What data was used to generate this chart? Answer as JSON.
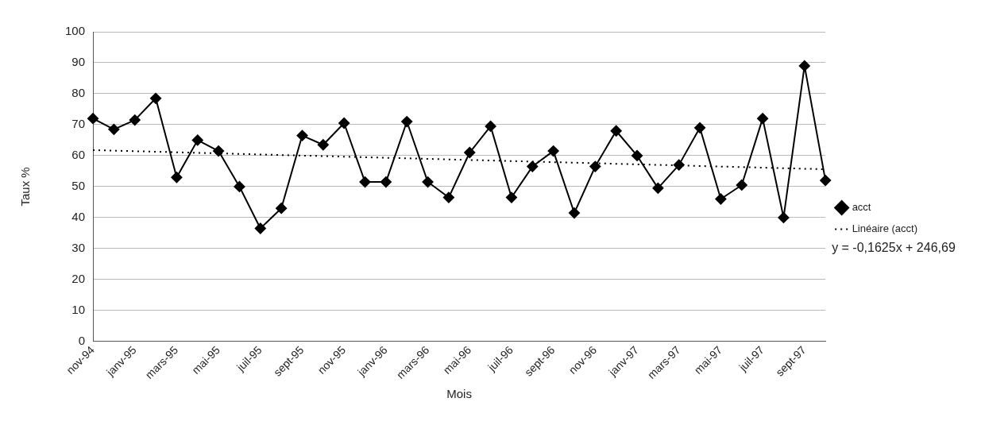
{
  "chart_data": {
    "type": "line",
    "xlabel": "Mois",
    "ylabel": "Taux %",
    "categories": [
      "nov-94",
      null,
      "janv-95",
      null,
      "mars-95",
      null,
      "mai-95",
      null,
      "juil-95",
      null,
      "sept-95",
      null,
      "nov-95",
      null,
      "janv-96",
      null,
      "mars-96",
      null,
      "mai-96",
      null,
      "juil-96",
      null,
      "sept-96",
      null,
      "nov-96",
      null,
      "janv-97",
      null,
      "mars-97",
      null,
      "mai-97",
      null,
      "juil-97",
      null,
      "sept-97",
      null
    ],
    "series": [
      {
        "name": "acct",
        "color": "#000000",
        "marker": "diamond",
        "line_style": "solid",
        "values": [
          72,
          68.5,
          71.5,
          78.5,
          53,
          65,
          61.5,
          50,
          36.5,
          43,
          66.5,
          63.5,
          70.5,
          51.5,
          51.5,
          71,
          51.5,
          46.5,
          61,
          69.5,
          46.5,
          56.5,
          61.5,
          41.5,
          56.5,
          68,
          60,
          49.5,
          57,
          69,
          46,
          50.5,
          72,
          40,
          89,
          52
        ]
      },
      {
        "name": "Linéaire (acct)",
        "color": "#000000",
        "marker": "none",
        "line_style": "dotted",
        "values": [
          61.8,
          null,
          null,
          null,
          null,
          null,
          null,
          null,
          null,
          null,
          null,
          null,
          null,
          null,
          null,
          null,
          null,
          null,
          null,
          null,
          null,
          null,
          null,
          null,
          null,
          null,
          null,
          null,
          null,
          null,
          null,
          null,
          null,
          null,
          null,
          55.6
        ]
      }
    ],
    "ylim": [
      0,
      100
    ],
    "yticks": [
      0,
      10,
      20,
      30,
      40,
      50,
      60,
      70,
      80,
      90,
      100
    ],
    "grid": "y",
    "legend": "right",
    "annotations": [
      "y = -0,1625x + 246,69"
    ]
  }
}
